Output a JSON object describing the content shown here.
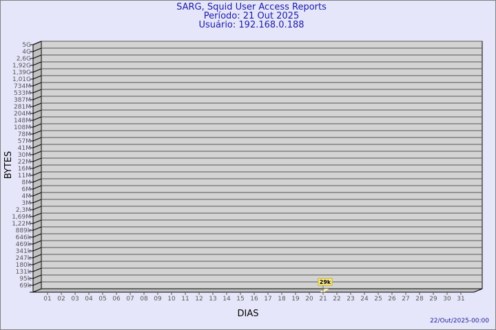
{
  "header": {
    "title": "SARG, Squid User Access Reports",
    "period": "Período: 21 Out 2025",
    "user": "Usuário: 192.168.0.188"
  },
  "footer": {
    "timestamp": "22/Out/2025-00:00"
  },
  "colors": {
    "background": "#e6e6fa",
    "plot_wall": "#d3d3d3",
    "bar": "#fff0a0",
    "title": "#1a1aa6"
  },
  "chart_data": {
    "type": "bar",
    "xlabel": "DIAS",
    "ylabel": "BYTES",
    "grid": true,
    "y_scale": "log",
    "y_tick_labels": [
      "5G",
      "4G",
      "2,6G",
      "1,92G",
      "1,39G",
      "1,01G",
      "734M",
      "533M",
      "387M",
      "281M",
      "204M",
      "148M",
      "108M",
      "78M",
      "57M",
      "41M",
      "30M",
      "22M",
      "16M",
      "11M",
      "8M",
      "6M",
      "4M",
      "3M",
      "2,3M",
      "1,69M",
      "1,22M",
      "889k",
      "646k",
      "469k",
      "341k",
      "247k",
      "180k",
      "131k",
      "95k",
      "69k"
    ],
    "categories": [
      "01",
      "02",
      "03",
      "04",
      "05",
      "06",
      "07",
      "08",
      "09",
      "10",
      "11",
      "12",
      "13",
      "14",
      "15",
      "16",
      "17",
      "18",
      "19",
      "20",
      "21",
      "22",
      "23",
      "24",
      "25",
      "26",
      "27",
      "28",
      "29",
      "30",
      "31"
    ],
    "series": [
      {
        "points": [
          {
            "x": "21",
            "value": 29000,
            "label": "29k"
          }
        ]
      }
    ]
  }
}
